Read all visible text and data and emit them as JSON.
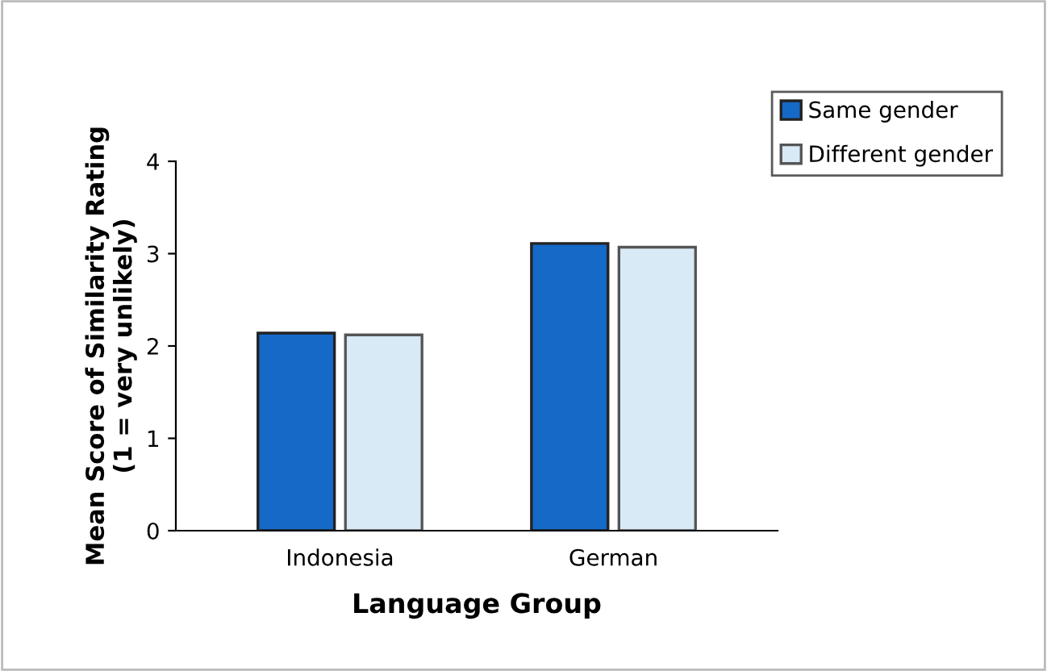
{
  "chart_data": {
    "type": "bar",
    "xlabel": "Language Group",
    "ylabel": "Mean Score of Similarity Rating\n(1 = very unlikely)",
    "categories": [
      "Indonesia",
      "German"
    ],
    "series": [
      {
        "name": "Same gender",
        "color": "#1569c7",
        "values": [
          2.14,
          3.11
        ]
      },
      {
        "name": "Different gender",
        "color": "#d9eaf7",
        "values": [
          2.12,
          3.07
        ]
      }
    ],
    "ylim": [
      0,
      4
    ],
    "yticks": [
      0,
      1,
      2,
      3,
      4
    ],
    "grid": false,
    "legend": "top right"
  }
}
